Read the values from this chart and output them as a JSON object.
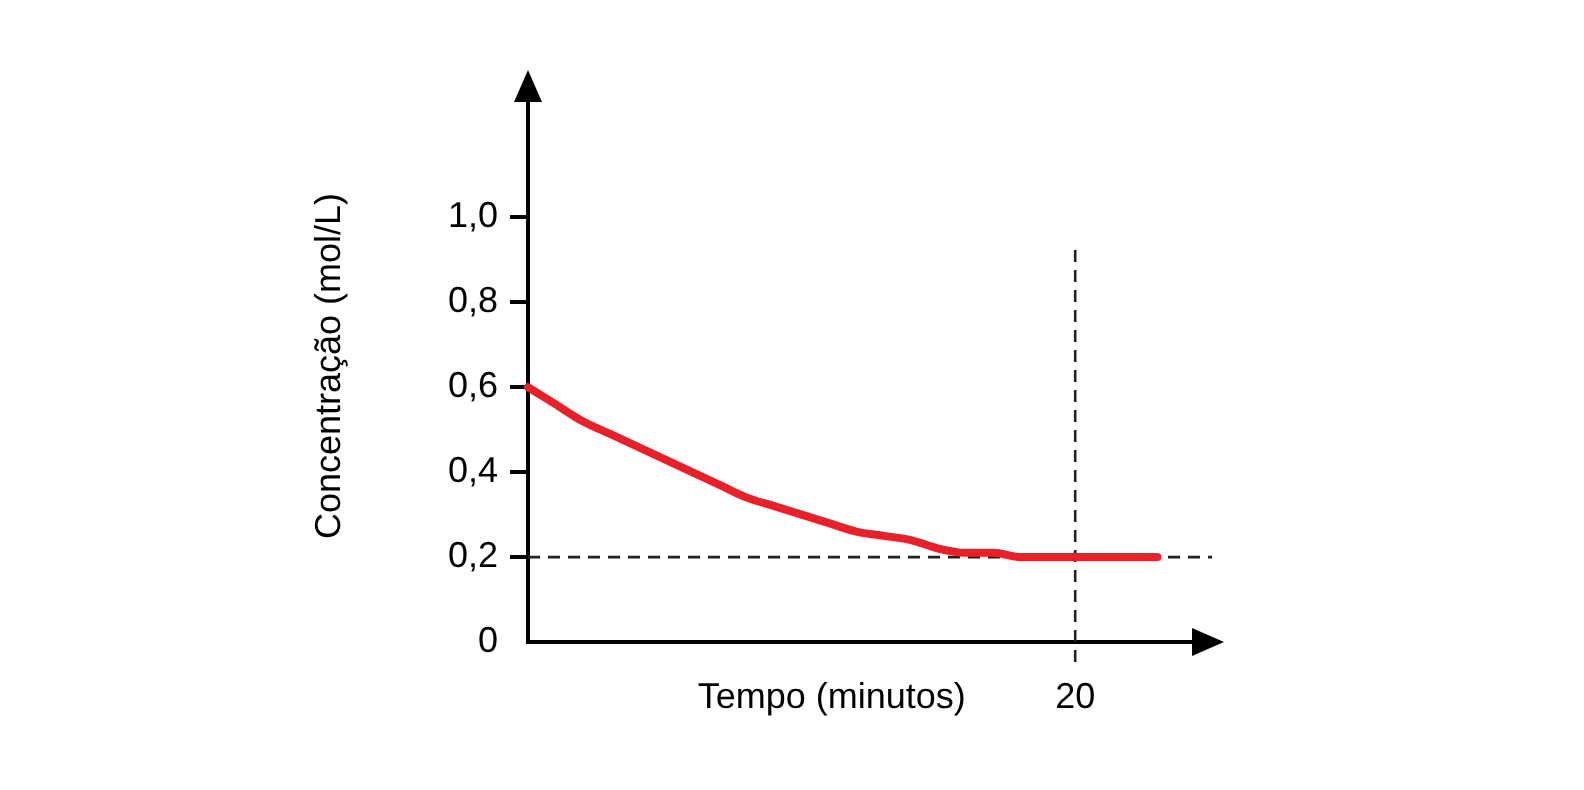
{
  "chart_data": {
    "type": "line",
    "xlabel": "Tempo (minutos)",
    "ylabel": "Concentração (mol/L)",
    "categories": [
      null,
      null,
      null,
      null,
      null,
      null,
      null,
      null,
      null,
      null,
      null,
      null,
      null,
      null,
      null,
      null,
      null,
      null,
      null,
      null,
      "20",
      null,
      null,
      null,
      null,
      null
    ],
    "series": [
      {
        "color": "#e8202a",
        "values": [
          0.6,
          0.56,
          0.52,
          0.49,
          0.46,
          0.43,
          0.4,
          0.37,
          0.34,
          0.32,
          0.3,
          0.28,
          0.26,
          0.25,
          0.24,
          0.22,
          0.21,
          0.21,
          0.2,
          0.2,
          0.2,
          0.2,
          0.2,
          0.2,
          null,
          null
        ]
      }
    ],
    "ylim": [
      0,
      1.3
    ],
    "yticks": [
      {
        "value": 0,
        "label": "0"
      },
      {
        "value": 0.2,
        "label": "0,2"
      },
      {
        "value": 0.4,
        "label": "0,4"
      },
      {
        "value": 0.6,
        "label": "0,6"
      },
      {
        "value": 0.8,
        "label": "0,8"
      },
      {
        "value": 1.0,
        "label": "1,0"
      }
    ],
    "ref_lines": [
      {
        "axis": "y",
        "value": 0.2,
        "color": "#222222",
        "line_style": "dashed"
      },
      {
        "axis": "x",
        "value": "20",
        "color": "#222222",
        "line_style": "dashed"
      }
    ],
    "grid": false,
    "legend": false,
    "marker": "none",
    "line_style": "solid"
  }
}
